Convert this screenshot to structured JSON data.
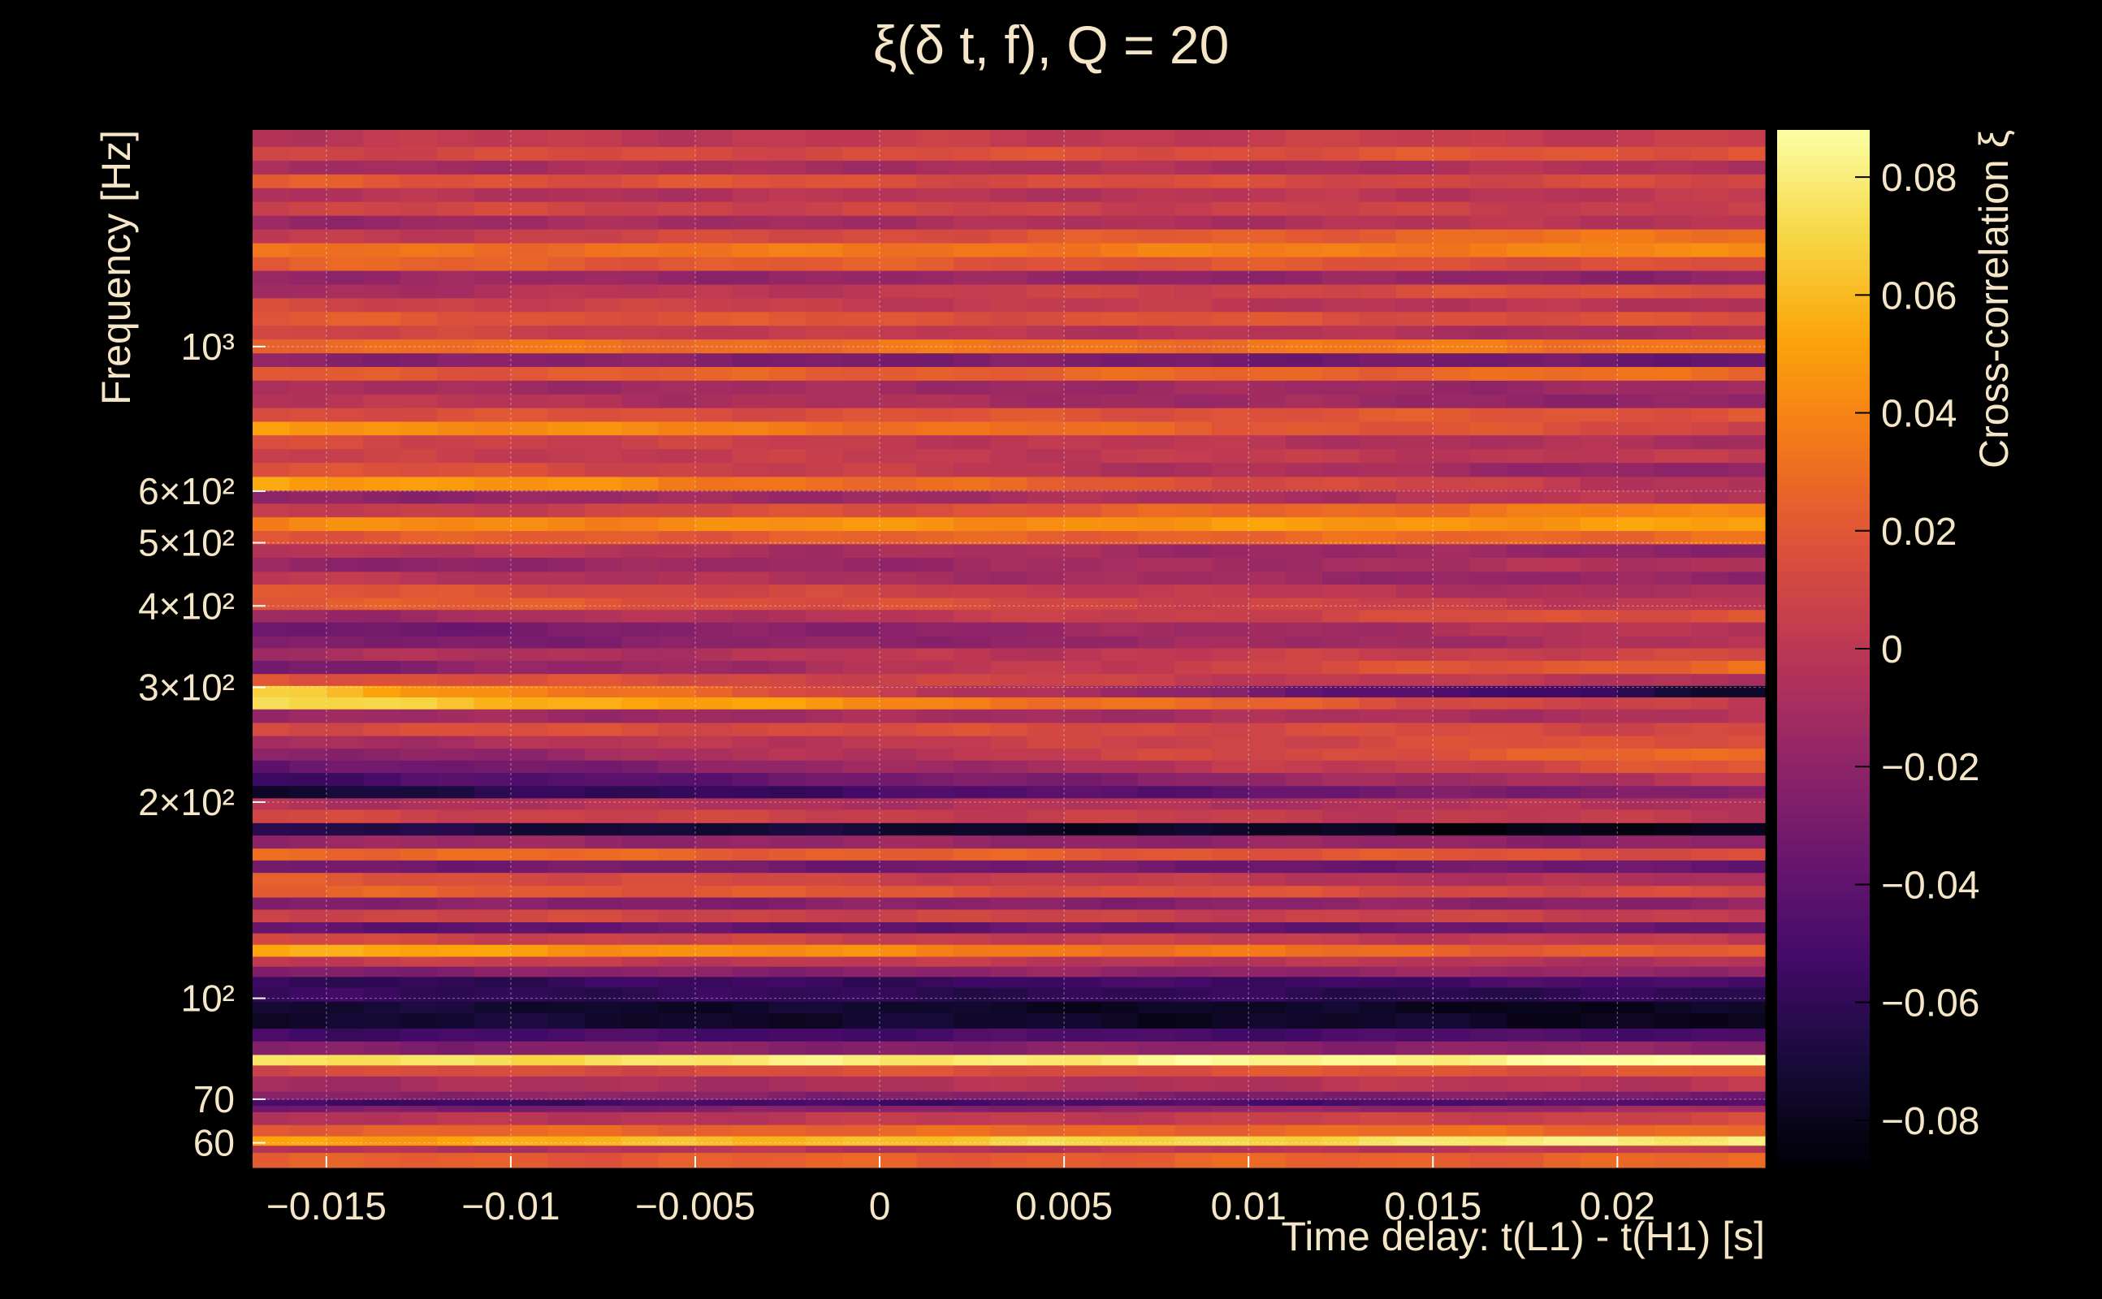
{
  "chart_data": {
    "type": "heatmap",
    "title": "ξ(δ t, f), Q = 20",
    "xlabel": "Time delay: t(L1) - t(H1) [s]",
    "ylabel": "Frequency [Hz]",
    "xlim": [
      -0.017,
      0.024
    ],
    "ylim": [
      55,
      2150
    ],
    "y_scale": "log",
    "grid": true,
    "x_ticks": [
      {
        "value": -0.015,
        "label": "−0.015"
      },
      {
        "value": -0.01,
        "label": "−0.01"
      },
      {
        "value": -0.005,
        "label": "−0.005"
      },
      {
        "value": 0,
        "label": "0"
      },
      {
        "value": 0.005,
        "label": "0.005"
      },
      {
        "value": 0.01,
        "label": "0.01"
      },
      {
        "value": 0.015,
        "label": "0.015"
      },
      {
        "value": 0.02,
        "label": "0.02"
      }
    ],
    "y_ticks": [
      {
        "value": 60,
        "label": "60"
      },
      {
        "value": 70,
        "label": "70"
      },
      {
        "value": 100,
        "label": "10²"
      },
      {
        "value": 200,
        "label": "2×10²"
      },
      {
        "value": 300,
        "label": "3×10²"
      },
      {
        "value": 400,
        "label": "4×10²"
      },
      {
        "value": 500,
        "label": "5×10²"
      },
      {
        "value": 600,
        "label": "6×10²"
      },
      {
        "value": 1000,
        "label": "10³"
      }
    ],
    "colorbar": {
      "label": "Cross-correlation ξ",
      "range": [
        -0.088,
        0.088
      ],
      "colormap": "inferno",
      "ticks": [
        {
          "value": 0.08,
          "label": "0.08"
        },
        {
          "value": 0.06,
          "label": "0.06"
        },
        {
          "value": 0.04,
          "label": "0.04"
        },
        {
          "value": 0.02,
          "label": "0.02"
        },
        {
          "value": 0,
          "label": "0"
        },
        {
          "value": -0.02,
          "label": "−0.02"
        },
        {
          "value": -0.04,
          "label": "−0.04"
        },
        {
          "value": -0.06,
          "label": "−0.06"
        },
        {
          "value": -0.08,
          "label": "−0.08"
        }
      ]
    },
    "time_bins": {
      "start": -0.017,
      "end": 0.024,
      "count": 41
    },
    "rows": [
      {
        "f": [
          55,
          58
        ],
        "v": [
          0.022,
          0.026
        ]
      },
      {
        "f": [
          58,
          59.5
        ],
        "v": [
          -0.005,
          0.0
        ]
      },
      {
        "f": [
          59.5,
          61.5
        ],
        "v": [
          0.05,
          0.082
        ]
      },
      {
        "f": [
          61.5,
          64
        ],
        "v": [
          0.025,
          0.03
        ]
      },
      {
        "f": [
          64,
          67
        ],
        "v": [
          -0.005,
          0.01
        ]
      },
      {
        "f": [
          67,
          68.5
        ],
        "v": [
          -0.032,
          -0.012
        ]
      },
      {
        "f": [
          68.5,
          70
        ],
        "v": [
          -0.055,
          -0.045
        ]
      },
      {
        "f": [
          70,
          72
        ],
        "v": [
          -0.02,
          -0.03
        ]
      },
      {
        "f": [
          72,
          76
        ],
        "v": [
          -0.01,
          0.0
        ]
      },
      {
        "f": [
          76,
          79
        ],
        "v": [
          0.012,
          0.02
        ]
      },
      {
        "f": [
          79,
          82
        ],
        "v": [
          0.072,
          0.088
        ]
      },
      {
        "f": [
          82,
          86
        ],
        "v": [
          -0.025,
          -0.02
        ]
      },
      {
        "f": [
          86,
          90
        ],
        "v": [
          -0.052,
          -0.048
        ]
      },
      {
        "f": [
          90,
          95
        ],
        "v": [
          -0.072,
          -0.078
        ]
      },
      {
        "f": [
          95,
          99
        ],
        "v": [
          -0.072,
          -0.08
        ]
      },
      {
        "f": [
          99,
          104
        ],
        "v": [
          -0.058,
          -0.062
        ]
      },
      {
        "f": [
          104,
          108
        ],
        "v": [
          -0.06,
          -0.05
        ]
      },
      {
        "f": [
          108,
          112
        ],
        "v": [
          -0.025,
          -0.015
        ]
      },
      {
        "f": [
          112,
          116
        ],
        "v": [
          0.005,
          -0.005
        ]
      },
      {
        "f": [
          116,
          121
        ],
        "v": [
          0.055,
          0.02
        ]
      },
      {
        "f": [
          121,
          126
        ],
        "v": [
          0.01,
          0.0
        ]
      },
      {
        "f": [
          126,
          131
        ],
        "v": [
          -0.04,
          -0.035
        ]
      },
      {
        "f": [
          131,
          137
        ],
        "v": [
          0.01,
          0.005
        ]
      },
      {
        "f": [
          137,
          143
        ],
        "v": [
          -0.025,
          -0.02
        ]
      },
      {
        "f": [
          143,
          149
        ],
        "v": [
          0.025,
          0.01
        ]
      },
      {
        "f": [
          149,
          156
        ],
        "v": [
          0.02,
          -0.01
        ]
      },
      {
        "f": [
          156,
          163
        ],
        "v": [
          -0.03,
          -0.035
        ]
      },
      {
        "f": [
          163,
          170
        ],
        "v": [
          0.03,
          0.015
        ]
      },
      {
        "f": [
          170,
          178
        ],
        "v": [
          -0.015,
          -0.02
        ]
      },
      {
        "f": [
          178,
          186
        ],
        "v": [
          -0.065,
          -0.085
        ]
      },
      {
        "f": [
          186,
          195
        ],
        "v": [
          0.01,
          0.0
        ]
      },
      {
        "f": [
          195,
          203
        ],
        "v": [
          -0.005,
          -0.005
        ]
      },
      {
        "f": [
          203,
          212
        ],
        "v": [
          -0.072,
          -0.02
        ]
      },
      {
        "f": [
          212,
          222
        ],
        "v": [
          -0.055,
          0.0
        ]
      },
      {
        "f": [
          222,
          232
        ],
        "v": [
          -0.04,
          0.02
        ]
      },
      {
        "f": [
          232,
          242
        ],
        "v": [
          -0.025,
          0.03
        ]
      },
      {
        "f": [
          242,
          253
        ],
        "v": [
          -0.01,
          0.02
        ]
      },
      {
        "f": [
          253,
          265
        ],
        "v": [
          0.015,
          0.012
        ]
      },
      {
        "f": [
          265,
          278
        ],
        "v": [
          -0.015,
          -0.005
        ]
      },
      {
        "f": [
          278,
          290
        ],
        "v": [
          0.072,
          0.0
        ]
      },
      {
        "f": [
          290,
          302
        ],
        "v": [
          0.065,
          -0.075
        ]
      },
      {
        "f": [
          302,
          315
        ],
        "v": [
          0.02,
          -0.005
        ]
      },
      {
        "f": [
          315,
          330
        ],
        "v": [
          -0.03,
          0.03
        ]
      },
      {
        "f": [
          330,
          345
        ],
        "v": [
          -0.01,
          0.01
        ]
      },
      {
        "f": [
          345,
          360
        ],
        "v": [
          -0.03,
          -0.005
        ]
      },
      {
        "f": [
          360,
          378
        ],
        "v": [
          -0.035,
          0.0
        ]
      },
      {
        "f": [
          378,
          395
        ],
        "v": [
          -0.015,
          0.02
        ]
      },
      {
        "f": [
          395,
          412
        ],
        "v": [
          0.025,
          0.0
        ]
      },
      {
        "f": [
          412,
          432
        ],
        "v": [
          0.02,
          -0.01
        ]
      },
      {
        "f": [
          432,
          452
        ],
        "v": [
          0.0,
          -0.02
        ]
      },
      {
        "f": [
          452,
          475
        ],
        "v": [
          -0.02,
          -0.005
        ]
      },
      {
        "f": [
          475,
          498
        ],
        "v": [
          0.0,
          -0.02
        ]
      },
      {
        "f": [
          498,
          522
        ],
        "v": [
          0.02,
          0.03
        ]
      },
      {
        "f": [
          522,
          548
        ],
        "v": [
          0.04,
          0.05
        ]
      },
      {
        "f": [
          548,
          575
        ],
        "v": [
          0.0,
          0.04
        ]
      },
      {
        "f": [
          575,
          602
        ],
        "v": [
          -0.02,
          0.0
        ]
      },
      {
        "f": [
          602,
          632
        ],
        "v": [
          0.055,
          -0.005
        ]
      },
      {
        "f": [
          632,
          664
        ],
        "v": [
          0.02,
          -0.02
        ]
      },
      {
        "f": [
          664,
          697
        ],
        "v": [
          0.005,
          0.0
        ]
      },
      {
        "f": [
          697,
          732
        ],
        "v": [
          0.012,
          -0.01
        ]
      },
      {
        "f": [
          732,
          768
        ],
        "v": [
          0.05,
          0.01
        ]
      },
      {
        "f": [
          768,
          806
        ],
        "v": [
          0.015,
          0.02
        ]
      },
      {
        "f": [
          806,
          846
        ],
        "v": [
          0.0,
          -0.02
        ]
      },
      {
        "f": [
          846,
          888
        ],
        "v": [
          -0.01,
          -0.015
        ]
      },
      {
        "f": [
          888,
          932
        ],
        "v": [
          0.02,
          0.03
        ]
      },
      {
        "f": [
          932,
          978
        ],
        "v": [
          -0.02,
          -0.035
        ]
      },
      {
        "f": [
          978,
          1027
        ],
        "v": [
          0.03,
          0.035
        ]
      },
      {
        "f": [
          1027,
          1078
        ],
        "v": [
          0.01,
          -0.01
        ]
      },
      {
        "f": [
          1078,
          1132
        ],
        "v": [
          0.02,
          0.015
        ]
      },
      {
        "f": [
          1132,
          1188
        ],
        "v": [
          0.01,
          -0.005
        ]
      },
      {
        "f": [
          1188,
          1247
        ],
        "v": [
          -0.01,
          0.02
        ]
      },
      {
        "f": [
          1247,
          1309
        ],
        "v": [
          -0.015,
          -0.02
        ]
      },
      {
        "f": [
          1309,
          1374
        ],
        "v": [
          0.025,
          0.015
        ]
      },
      {
        "f": [
          1374,
          1443
        ],
        "v": [
          0.03,
          0.04
        ]
      },
      {
        "f": [
          1443,
          1515
        ],
        "v": [
          0.0,
          0.035
        ]
      },
      {
        "f": [
          1515,
          1590
        ],
        "v": [
          -0.015,
          0.0
        ]
      },
      {
        "f": [
          1590,
          1670
        ],
        "v": [
          0.01,
          0.005
        ]
      },
      {
        "f": [
          1670,
          1753
        ],
        "v": [
          -0.005,
          0.0
        ]
      },
      {
        "f": [
          1753,
          1840
        ],
        "v": [
          0.02,
          0.01
        ]
      },
      {
        "f": [
          1840,
          1932
        ],
        "v": [
          -0.01,
          -0.005
        ]
      },
      {
        "f": [
          1932,
          2028
        ],
        "v": [
          0.01,
          0.02
        ]
      },
      {
        "f": [
          2028,
          2150
        ],
        "v": [
          0.0,
          0.005
        ]
      }
    ]
  }
}
